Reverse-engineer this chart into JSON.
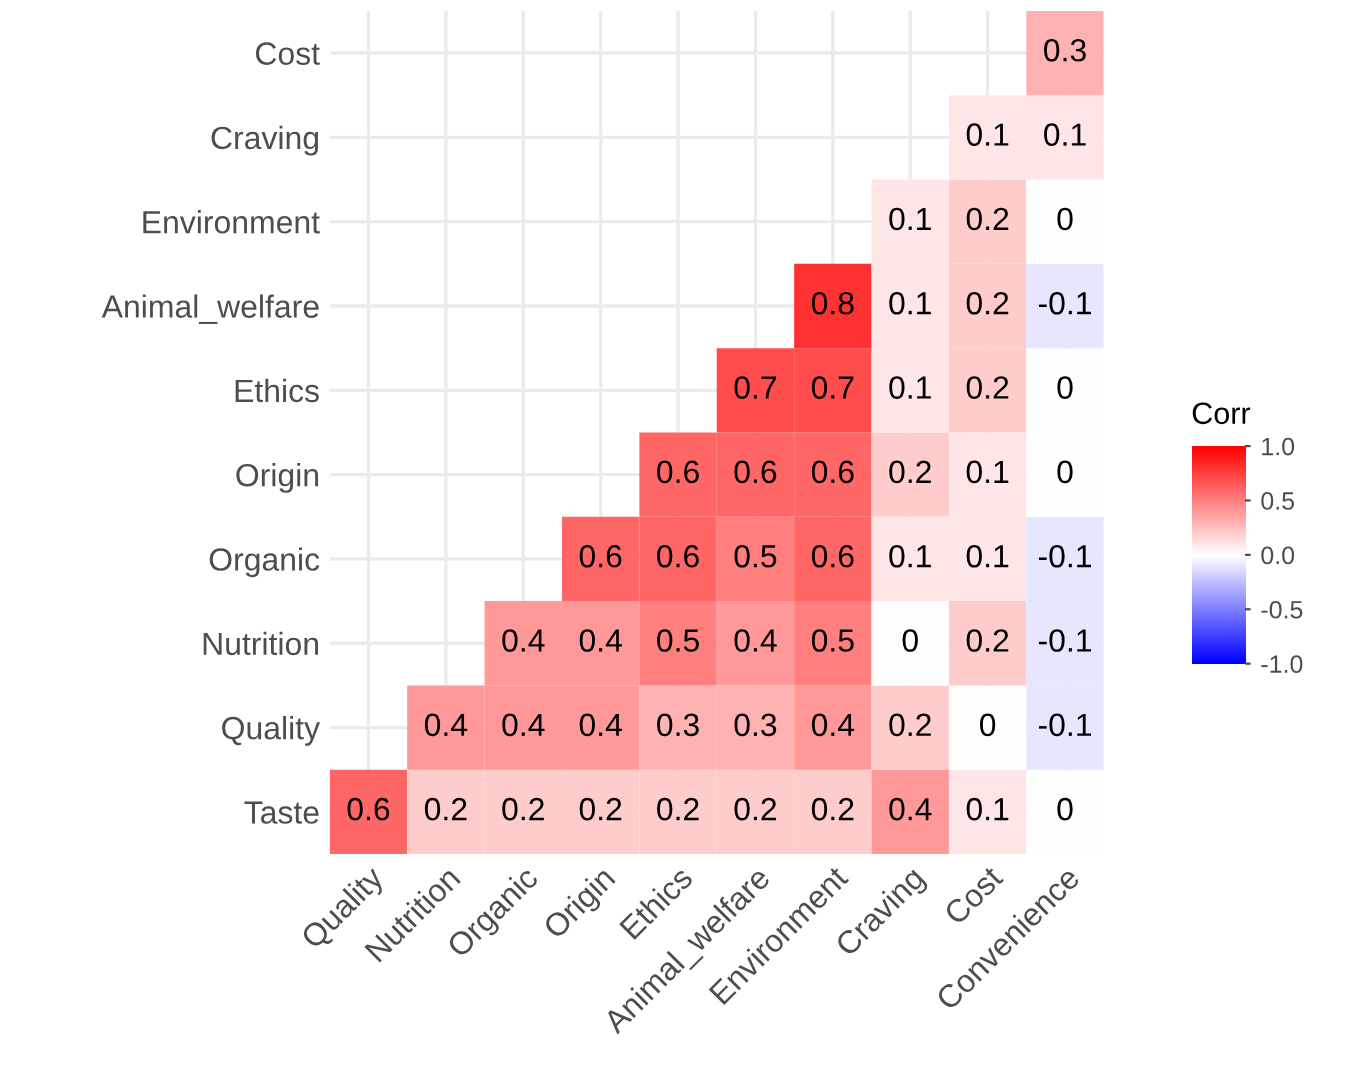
{
  "chart_data": {
    "type": "heatmap",
    "clabel": "Corr",
    "categories": [
      "Quality",
      "Nutrition",
      "Organic",
      "Origin",
      "Ethics",
      "Animal_welfare",
      "Environment",
      "Craving",
      "Cost",
      "Convenience"
    ],
    "y_categories": [
      "Cost",
      "Craving",
      "Environment",
      "Animal_welfare",
      "Ethics",
      "Origin",
      "Organic",
      "Nutrition",
      "Quality",
      "Taste"
    ],
    "cells": [
      [
        null,
        null,
        null,
        null,
        null,
        null,
        null,
        null,
        null,
        0.3
      ],
      [
        null,
        null,
        null,
        null,
        null,
        null,
        null,
        null,
        0.1,
        0.1
      ],
      [
        null,
        null,
        null,
        null,
        null,
        null,
        null,
        0.1,
        0.2,
        0
      ],
      [
        null,
        null,
        null,
        null,
        null,
        null,
        0.8,
        0.1,
        0.2,
        -0.1
      ],
      [
        null,
        null,
        null,
        null,
        null,
        0.7,
        0.7,
        0.1,
        0.2,
        0
      ],
      [
        null,
        null,
        null,
        null,
        0.6,
        0.6,
        0.6,
        0.2,
        0.1,
        0
      ],
      [
        null,
        null,
        null,
        0.6,
        0.6,
        0.5,
        0.6,
        0.1,
        0.1,
        -0.1
      ],
      [
        null,
        null,
        0.4,
        0.4,
        0.5,
        0.4,
        0.5,
        0,
        0.2,
        -0.1
      ],
      [
        null,
        0.4,
        0.4,
        0.4,
        0.3,
        0.3,
        0.4,
        0.2,
        0,
        -0.1
      ],
      [
        0.6,
        0.2,
        0.2,
        0.2,
        0.2,
        0.2,
        0.2,
        0.4,
        0.1,
        0
      ]
    ],
    "data_labels": true,
    "grid": true,
    "clim": [
      -1,
      1
    ],
    "cticks": [
      {
        "value": -1,
        "label": "-1.0"
      },
      {
        "value": -0.5,
        "label": "-0.5"
      },
      {
        "value": 0,
        "label": "0.0"
      },
      {
        "value": 0.5,
        "label": "0.5"
      },
      {
        "value": 1,
        "label": "1.0"
      }
    ],
    "colors": [
      "#0000ff",
      "#ffffff",
      "#ff0000"
    ]
  }
}
